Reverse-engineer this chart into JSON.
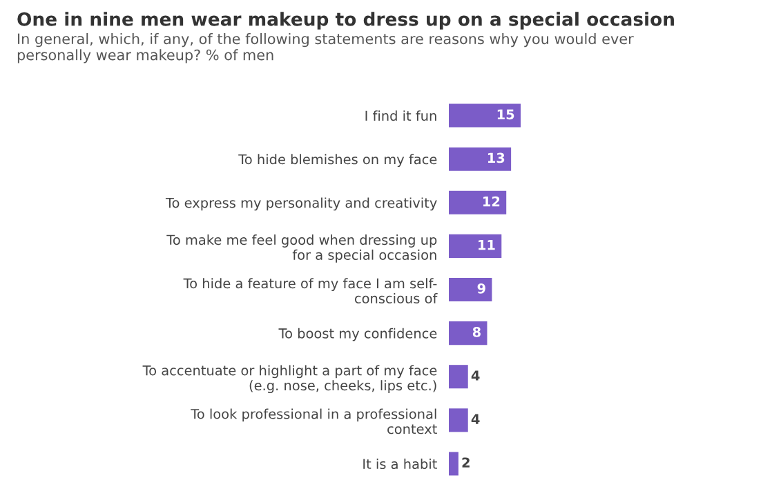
{
  "chart_data": {
    "type": "bar",
    "orientation": "horizontal",
    "title": "One in nine men wear makeup to dress up on a special occasion",
    "subtitle": "In general, which, if any, of the following statements are reasons why you would ever\npersonally wear makeup? % of men",
    "categories": [
      "I find it fun",
      "To hide blemishes on my face",
      "To express my personality and creativity",
      "To make me feel good when dressing up\nfor a special occasion",
      "To hide a feature of my face I am self-\nconscious of",
      "To boost my confidence",
      "To accentuate or highlight a part of my face\n(e.g. nose, cheeks, lips etc.)",
      "To look professional in a professional\ncontext",
      "It is a habit"
    ],
    "values": [
      15,
      13,
      12,
      11,
      9,
      8,
      4,
      4,
      2
    ],
    "color": "#7b5cc8",
    "data_labels": true
  }
}
